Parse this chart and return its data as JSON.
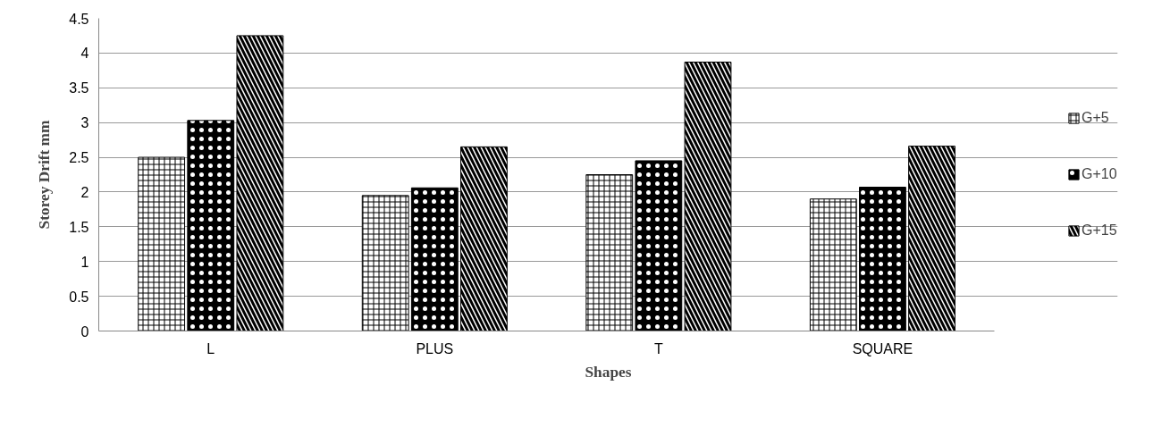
{
  "chart_data": {
    "type": "bar",
    "xlabel": "Shapes",
    "ylabel": "Storey Drift mm",
    "categories": [
      "L",
      "PLUS",
      "T",
      "SQUARE"
    ],
    "series": [
      {
        "name": "G+5",
        "color": "#ffffff",
        "values": [
          2.5,
          1.95,
          2.25,
          1.9
        ]
      },
      {
        "name": "G+10",
        "color": "#000000",
        "values": [
          3.03,
          2.06,
          2.45,
          2.07
        ]
      },
      {
        "name": "G+15",
        "color": "#ffffff",
        "values": [
          4.25,
          2.65,
          3.87,
          2.66
        ]
      }
    ],
    "ylim": [
      0,
      4.5
    ],
    "yticks": [
      0,
      0.5,
      1,
      1.5,
      2,
      2.5,
      3,
      3.5,
      4,
      4.5
    ],
    "grid": "y",
    "legend": "right"
  }
}
